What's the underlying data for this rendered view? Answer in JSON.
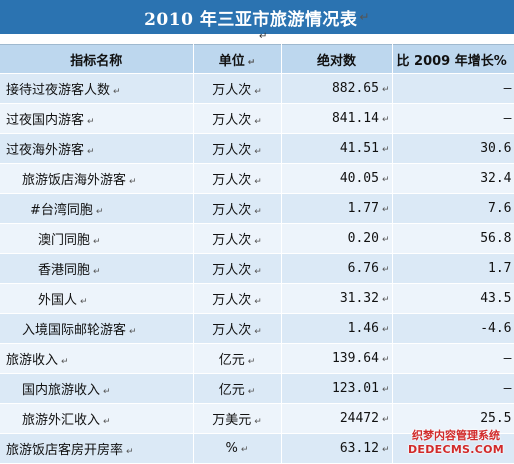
{
  "title": "2010 年三亚市旅游情况表",
  "paragraph_mark": "↵",
  "headers": {
    "indicator": "指标名称",
    "unit": "单位",
    "absolute": "绝对数",
    "growth": "比 2009 年增长%"
  },
  "rows": [
    {
      "name": "接待过夜游客人数",
      "indent": 0,
      "unit": "万人次",
      "value": "882.65",
      "growth": "—"
    },
    {
      "name": "过夜国内游客",
      "indent": 0,
      "unit": "万人次",
      "value": "841.14",
      "growth": "—"
    },
    {
      "name": "过夜海外游客",
      "indent": 0,
      "unit": "万人次",
      "value": "41.51",
      "growth": "30.6"
    },
    {
      "name": "旅游饭店海外游客",
      "indent": 1,
      "unit": "万人次",
      "value": "40.05",
      "growth": "32.4"
    },
    {
      "name": "#台湾同胞",
      "indent": 2,
      "unit": "万人次",
      "value": "1.77",
      "growth": "7.6"
    },
    {
      "name": "澳门同胞",
      "indent": 3,
      "unit": "万人次",
      "value": "0.20",
      "growth": "56.8"
    },
    {
      "name": "香港同胞",
      "indent": 3,
      "unit": "万人次",
      "value": "6.76",
      "growth": "1.7"
    },
    {
      "name": "外国人",
      "indent": 3,
      "unit": "万人次",
      "value": "31.32",
      "growth": "43.5"
    },
    {
      "name": "入境国际邮轮游客",
      "indent": 1,
      "unit": "万人次",
      "value": "1.46",
      "growth": "-4.6"
    },
    {
      "name": "旅游收入",
      "indent": 0,
      "unit": "亿元",
      "value": "139.64",
      "growth": "—"
    },
    {
      "name": "国内旅游收入",
      "indent": 1,
      "unit": "亿元",
      "value": "123.01",
      "growth": "—"
    },
    {
      "name": "旅游外汇收入",
      "indent": 1,
      "unit": "万美元",
      "value": "24472",
      "growth": "25.5"
    },
    {
      "name": "旅游饭店客房开房率",
      "indent": 0,
      "unit": "%",
      "value": "63.12",
      "growth": ""
    }
  ],
  "watermark": {
    "line1": "织梦内容管理系统",
    "line2": "DEDECMS.COM"
  }
}
